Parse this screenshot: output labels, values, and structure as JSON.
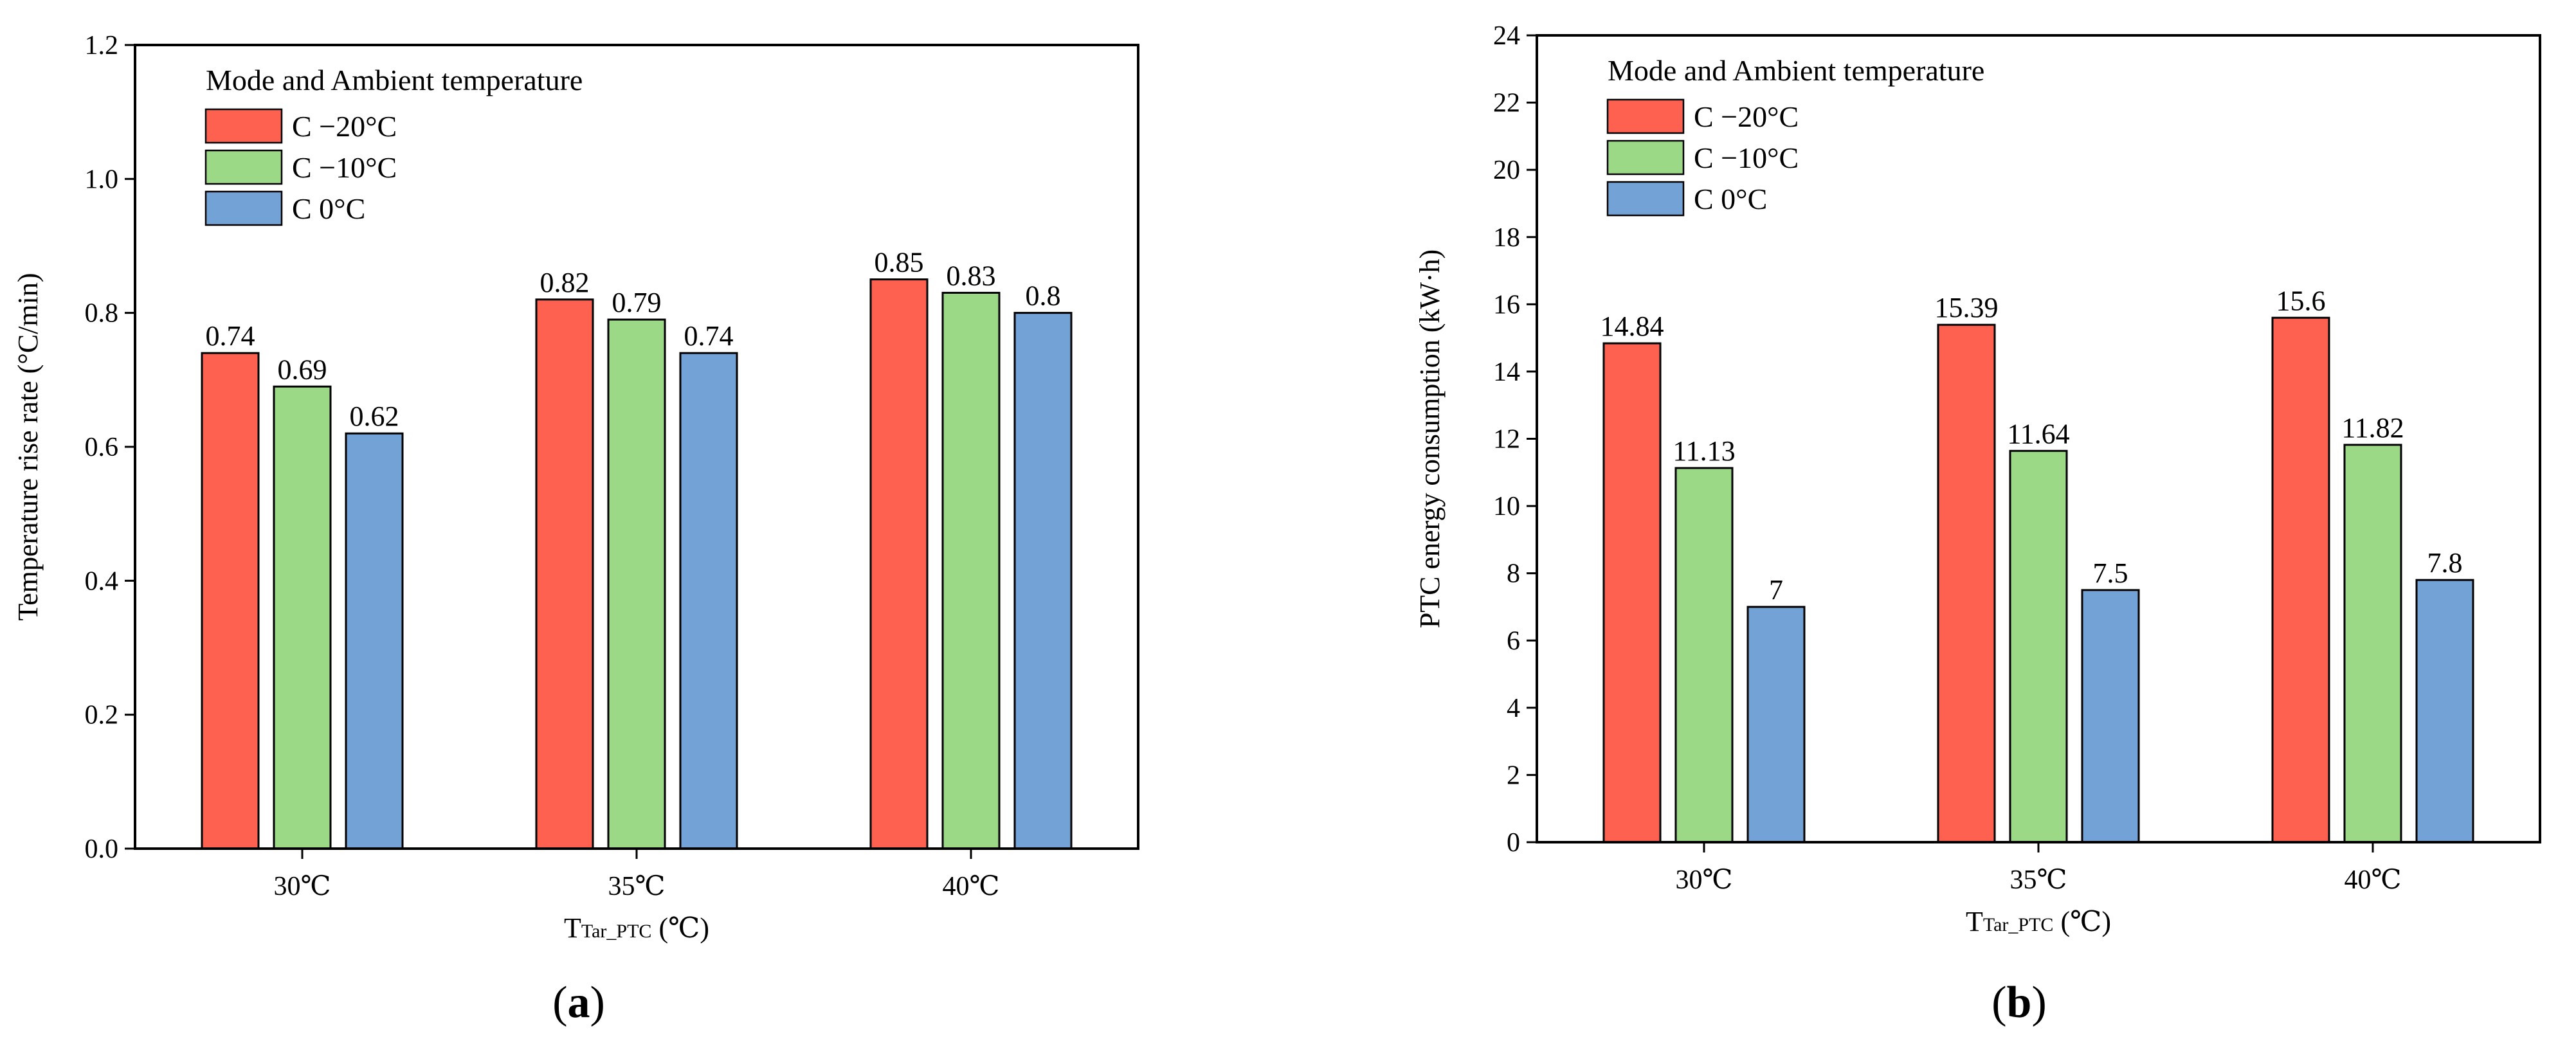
{
  "colors": {
    "series": [
      "#ff6150",
      "#9cd987",
      "#73a2d6"
    ],
    "axis": "#000000",
    "bar_edge": "#000000"
  },
  "chart_data": [
    {
      "type": "bar",
      "panel": "(a)",
      "panel_letter": "a",
      "title": "",
      "xlabel_main": "T",
      "xlabel_sub": "Tar_PTC",
      "xlabel_unit": " (℃)",
      "ylabel": "Temperature rise rate (°C/min)",
      "ylim": [
        0,
        1.2
      ],
      "yticks": [
        "0.0",
        "0.2",
        "0.4",
        "0.6",
        "0.8",
        "1.0",
        "1.2"
      ],
      "categories": [
        "30℃",
        "35℃",
        "40℃"
      ],
      "legend_title": "Mode and Ambient temperature",
      "legend_position": "top-left",
      "series": [
        {
          "name": "C −20°C",
          "values": [
            0.74,
            0.82,
            0.85
          ],
          "labels": [
            "0.74",
            "0.82",
            "0.85"
          ]
        },
        {
          "name": "C −10°C",
          "values": [
            0.69,
            0.79,
            0.83
          ],
          "labels": [
            "0.69",
            "0.79",
            "0.83"
          ]
        },
        {
          "name": "C 0°C",
          "values": [
            0.62,
            0.74,
            0.8
          ],
          "labels": [
            "0.62",
            "0.74",
            "0.8"
          ]
        }
      ]
    },
    {
      "type": "bar",
      "panel": "(b)",
      "panel_letter": "b",
      "title": "",
      "xlabel_main": "T",
      "xlabel_sub": "Tar_PTC",
      "xlabel_unit": " (℃)",
      "ylabel": "PTC energy consumption (kW·h)",
      "ylim": [
        0,
        24
      ],
      "yticks": [
        "0",
        "2",
        "4",
        "6",
        "8",
        "10",
        "12",
        "14",
        "16",
        "18",
        "20",
        "22",
        "24"
      ],
      "categories": [
        "30℃",
        "35℃",
        "40℃"
      ],
      "legend_title": "Mode and Ambient temperature",
      "legend_position": "top-left",
      "series": [
        {
          "name": "C −20°C",
          "values": [
            14.84,
            15.39,
            15.6
          ],
          "labels": [
            "14.84",
            "15.39",
            "15.6"
          ]
        },
        {
          "name": "C −10°C",
          "values": [
            11.13,
            11.64,
            11.82
          ],
          "labels": [
            "11.13",
            "11.64",
            "11.82"
          ]
        },
        {
          "name": "C 0°C",
          "values": [
            7.0,
            7.5,
            7.8
          ],
          "labels": [
            "7",
            "7.5",
            "7.8"
          ]
        }
      ]
    }
  ]
}
